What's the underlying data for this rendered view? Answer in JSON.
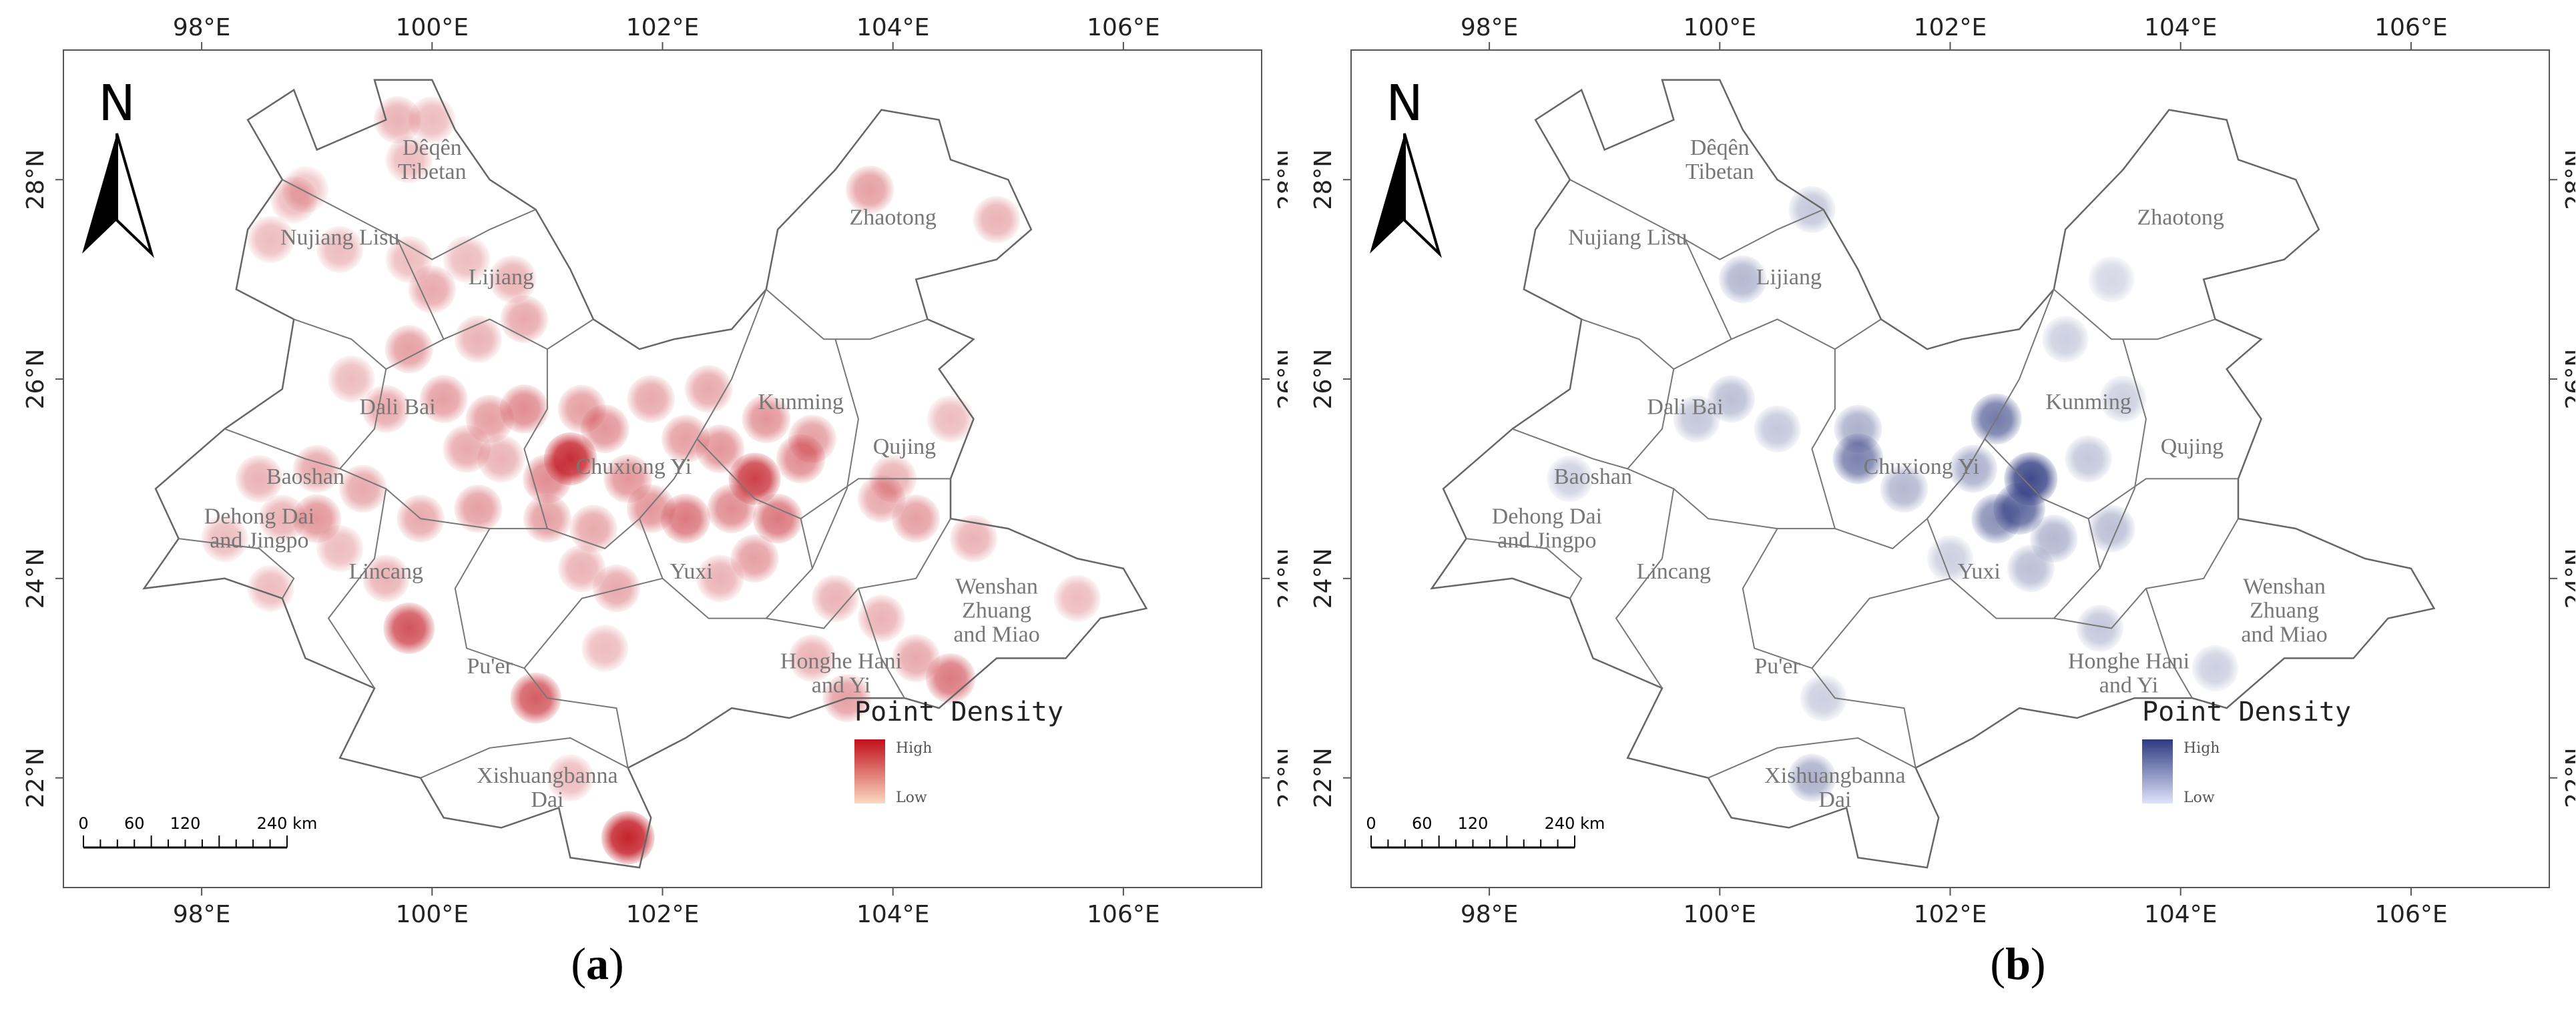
{
  "panels": [
    {
      "id": "a",
      "caption_letter": "a",
      "accent": "#c0101a",
      "light": "#fbd9c2",
      "longitude_labels": [
        "98°E",
        "100°E",
        "102°E",
        "104°E",
        "106°E"
      ],
      "latitude_labels": [
        "22°N",
        "24°N",
        "26°N",
        "28°N"
      ],
      "north_label": "N",
      "legend": {
        "title": "Point Density",
        "high": "High",
        "low": "Low"
      },
      "scalebar": {
        "ticks": [
          "0",
          "60",
          "120",
          "240 km"
        ]
      },
      "regions": [
        {
          "lines": [
            "Dêqên",
            "Tibetan"
          ]
        },
        {
          "lines": [
            "Nujiang Lisu"
          ]
        },
        {
          "lines": [
            "Lijiang"
          ]
        },
        {
          "lines": [
            "Zhaotong"
          ]
        },
        {
          "lines": [
            "Dali Bai"
          ]
        },
        {
          "lines": [
            "Kunming"
          ]
        },
        {
          "lines": [
            "Qujing"
          ]
        },
        {
          "lines": [
            "Baoshan"
          ]
        },
        {
          "lines": [
            "Chuxiong Yi"
          ]
        },
        {
          "lines": [
            "Dehong Dai",
            "and Jingpo"
          ]
        },
        {
          "lines": [
            "Yuxi"
          ]
        },
        {
          "lines": [
            "Lincang"
          ]
        },
        {
          "lines": [
            "Wenshan",
            "Zhuang",
            "and Miao"
          ]
        },
        {
          "lines": [
            "Pu'er"
          ]
        },
        {
          "lines": [
            "Honghe Hani",
            "and Yi"
          ]
        },
        {
          "lines": [
            "Xishuangbanna",
            "Dai"
          ]
        }
      ],
      "density_points": [
        {
          "lon": 99.7,
          "lat": 28.6,
          "level": 0.25
        },
        {
          "lon": 100.0,
          "lat": 28.6,
          "level": 0.2
        },
        {
          "lon": 99.8,
          "lat": 28.2,
          "level": 0.2
        },
        {
          "lon": 98.8,
          "lat": 27.8,
          "level": 0.2
        },
        {
          "lon": 98.6,
          "lat": 27.4,
          "level": 0.2
        },
        {
          "lon": 99.2,
          "lat": 27.3,
          "level": 0.2
        },
        {
          "lon": 99.8,
          "lat": 27.2,
          "level": 0.2
        },
        {
          "lon": 100.0,
          "lat": 26.9,
          "level": 0.3
        },
        {
          "lon": 100.3,
          "lat": 27.2,
          "level": 0.2
        },
        {
          "lon": 100.7,
          "lat": 27.0,
          "level": 0.25
        },
        {
          "lon": 100.8,
          "lat": 26.6,
          "level": 0.3
        },
        {
          "lon": 100.4,
          "lat": 26.4,
          "level": 0.25
        },
        {
          "lon": 99.8,
          "lat": 26.3,
          "level": 0.35
        },
        {
          "lon": 99.3,
          "lat": 26.0,
          "level": 0.2
        },
        {
          "lon": 99.6,
          "lat": 25.7,
          "level": 0.3
        },
        {
          "lon": 100.1,
          "lat": 25.8,
          "level": 0.35
        },
        {
          "lon": 100.5,
          "lat": 25.6,
          "level": 0.35
        },
        {
          "lon": 100.8,
          "lat": 25.7,
          "level": 0.45
        },
        {
          "lon": 100.3,
          "lat": 25.3,
          "level": 0.3
        },
        {
          "lon": 99.0,
          "lat": 25.1,
          "level": 0.3
        },
        {
          "lon": 98.5,
          "lat": 25.0,
          "level": 0.25
        },
        {
          "lon": 98.7,
          "lat": 24.6,
          "level": 0.25
        },
        {
          "lon": 99.0,
          "lat": 24.6,
          "level": 0.4
        },
        {
          "lon": 99.4,
          "lat": 24.9,
          "level": 0.3
        },
        {
          "lon": 99.9,
          "lat": 24.6,
          "level": 0.3
        },
        {
          "lon": 100.4,
          "lat": 24.7,
          "level": 0.35
        },
        {
          "lon": 98.2,
          "lat": 24.4,
          "level": 0.2
        },
        {
          "lon": 99.2,
          "lat": 24.3,
          "level": 0.2
        },
        {
          "lon": 99.6,
          "lat": 24.0,
          "level": 0.25
        },
        {
          "lon": 98.6,
          "lat": 23.9,
          "level": 0.2
        },
        {
          "lon": 99.8,
          "lat": 23.5,
          "level": 0.75
        },
        {
          "lon": 101.2,
          "lat": 25.2,
          "level": 0.95
        },
        {
          "lon": 101.0,
          "lat": 25.0,
          "level": 0.45
        },
        {
          "lon": 101.5,
          "lat": 25.5,
          "level": 0.4
        },
        {
          "lon": 101.3,
          "lat": 25.7,
          "level": 0.35
        },
        {
          "lon": 101.7,
          "lat": 25.0,
          "level": 0.4
        },
        {
          "lon": 101.0,
          "lat": 24.6,
          "level": 0.35
        },
        {
          "lon": 101.4,
          "lat": 24.5,
          "level": 0.3
        },
        {
          "lon": 101.9,
          "lat": 24.7,
          "level": 0.4
        },
        {
          "lon": 102.2,
          "lat": 24.6,
          "level": 0.55
        },
        {
          "lon": 102.6,
          "lat": 24.7,
          "level": 0.45
        },
        {
          "lon": 102.8,
          "lat": 25.0,
          "level": 0.85
        },
        {
          "lon": 103.0,
          "lat": 24.6,
          "level": 0.55
        },
        {
          "lon": 103.2,
          "lat": 25.2,
          "level": 0.45
        },
        {
          "lon": 102.5,
          "lat": 25.3,
          "level": 0.4
        },
        {
          "lon": 102.2,
          "lat": 25.4,
          "level": 0.35
        },
        {
          "lon": 102.9,
          "lat": 25.6,
          "level": 0.4
        },
        {
          "lon": 103.3,
          "lat": 25.4,
          "level": 0.35
        },
        {
          "lon": 102.4,
          "lat": 25.9,
          "level": 0.3
        },
        {
          "lon": 101.9,
          "lat": 25.8,
          "level": 0.3
        },
        {
          "lon": 101.6,
          "lat": 23.9,
          "level": 0.3
        },
        {
          "lon": 101.3,
          "lat": 24.1,
          "level": 0.25
        },
        {
          "lon": 102.8,
          "lat": 24.2,
          "level": 0.35
        },
        {
          "lon": 102.5,
          "lat": 24.0,
          "level": 0.25
        },
        {
          "lon": 103.9,
          "lat": 24.8,
          "level": 0.3
        },
        {
          "lon": 104.2,
          "lat": 24.6,
          "level": 0.35
        },
        {
          "lon": 104.0,
          "lat": 25.0,
          "level": 0.25
        },
        {
          "lon": 104.7,
          "lat": 24.4,
          "level": 0.25
        },
        {
          "lon": 104.5,
          "lat": 25.6,
          "level": 0.2
        },
        {
          "lon": 103.5,
          "lat": 23.8,
          "level": 0.25
        },
        {
          "lon": 103.3,
          "lat": 23.2,
          "level": 0.25
        },
        {
          "lon": 103.6,
          "lat": 22.8,
          "level": 0.35
        },
        {
          "lon": 104.2,
          "lat": 23.2,
          "level": 0.3
        },
        {
          "lon": 104.5,
          "lat": 23.0,
          "level": 0.55
        },
        {
          "lon": 103.9,
          "lat": 23.6,
          "level": 0.25
        },
        {
          "lon": 105.6,
          "lat": 23.8,
          "level": 0.2
        },
        {
          "lon": 101.5,
          "lat": 23.3,
          "level": 0.2
        },
        {
          "lon": 100.9,
          "lat": 22.8,
          "level": 0.7
        },
        {
          "lon": 101.2,
          "lat": 22.0,
          "level": 0.2
        },
        {
          "lon": 101.7,
          "lat": 21.4,
          "level": 1.0
        },
        {
          "lon": 103.8,
          "lat": 27.9,
          "level": 0.35
        },
        {
          "lon": 104.9,
          "lat": 27.6,
          "level": 0.25
        },
        {
          "lon": 98.9,
          "lat": 27.9,
          "level": 0.15
        },
        {
          "lon": 100.6,
          "lat": 25.2,
          "level": 0.25
        }
      ]
    },
    {
      "id": "b",
      "caption_letter": "b",
      "accent": "#2e3a80",
      "light": "#dfe3fa",
      "longitude_labels": [
        "98°E",
        "100°E",
        "102°E",
        "104°E",
        "106°E"
      ],
      "latitude_labels": [
        "22°N",
        "24°N",
        "26°N",
        "28°N"
      ],
      "north_label": "N",
      "legend": {
        "title": "Point Density",
        "high": "High",
        "low": "Low"
      },
      "scalebar": {
        "ticks": [
          "0",
          "60",
          "120",
          "240 km"
        ]
      },
      "regions": [
        {
          "lines": [
            "Dêqên",
            "Tibetan"
          ]
        },
        {
          "lines": [
            "Nujiang Lisu"
          ]
        },
        {
          "lines": [
            "Lijiang"
          ]
        },
        {
          "lines": [
            "Zhaotong"
          ]
        },
        {
          "lines": [
            "Dali Bai"
          ]
        },
        {
          "lines": [
            "Kunming"
          ]
        },
        {
          "lines": [
            "Qujing"
          ]
        },
        {
          "lines": [
            "Baoshan"
          ]
        },
        {
          "lines": [
            "Chuxiong Yi"
          ]
        },
        {
          "lines": [
            "Dehong Dai",
            "and Jingpo"
          ]
        },
        {
          "lines": [
            "Yuxi"
          ]
        },
        {
          "lines": [
            "Lincang"
          ]
        },
        {
          "lines": [
            "Wenshan",
            "Zhuang",
            "and Miao"
          ]
        },
        {
          "lines": [
            "Pu'er"
          ]
        },
        {
          "lines": [
            "Honghe Hani",
            "and Yi"
          ]
        },
        {
          "lines": [
            "Xishuangbanna",
            "Dai"
          ]
        }
      ],
      "density_points": [
        {
          "lon": 100.8,
          "lat": 27.7,
          "level": 0.2
        },
        {
          "lon": 100.2,
          "lat": 27.0,
          "level": 0.3
        },
        {
          "lon": 99.8,
          "lat": 25.6,
          "level": 0.2
        },
        {
          "lon": 100.1,
          "lat": 25.8,
          "level": 0.25
        },
        {
          "lon": 100.5,
          "lat": 25.5,
          "level": 0.2
        },
        {
          "lon": 98.7,
          "lat": 25.0,
          "level": 0.15
        },
        {
          "lon": 101.2,
          "lat": 25.5,
          "level": 0.35
        },
        {
          "lon": 101.2,
          "lat": 25.2,
          "level": 0.65
        },
        {
          "lon": 101.6,
          "lat": 24.9,
          "level": 0.3
        },
        {
          "lon": 102.4,
          "lat": 25.6,
          "level": 0.7
        },
        {
          "lon": 102.2,
          "lat": 25.1,
          "level": 0.35
        },
        {
          "lon": 102.7,
          "lat": 25.0,
          "level": 1.0
        },
        {
          "lon": 102.6,
          "lat": 24.7,
          "level": 0.8
        },
        {
          "lon": 102.4,
          "lat": 24.6,
          "level": 0.55
        },
        {
          "lon": 102.9,
          "lat": 24.4,
          "level": 0.3
        },
        {
          "lon": 103.2,
          "lat": 25.2,
          "level": 0.2
        },
        {
          "lon": 103.4,
          "lat": 24.5,
          "level": 0.25
        },
        {
          "lon": 102.7,
          "lat": 24.1,
          "level": 0.25
        },
        {
          "lon": 103.3,
          "lat": 23.5,
          "level": 0.2
        },
        {
          "lon": 104.3,
          "lat": 23.1,
          "level": 0.15
        },
        {
          "lon": 100.9,
          "lat": 22.8,
          "level": 0.15
        },
        {
          "lon": 100.8,
          "lat": 22.0,
          "level": 0.35
        },
        {
          "lon": 103.5,
          "lat": 25.8,
          "level": 0.15
        },
        {
          "lon": 103.0,
          "lat": 26.4,
          "level": 0.15
        },
        {
          "lon": 103.4,
          "lat": 27.0,
          "level": 0.1
        },
        {
          "lon": 102.0,
          "lat": 24.2,
          "level": 0.15
        }
      ]
    }
  ]
}
